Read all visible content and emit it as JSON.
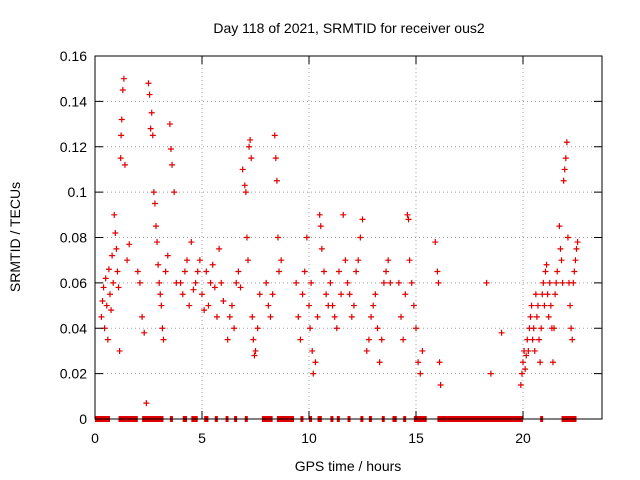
{
  "chart_data": {
    "type": "scatter",
    "title": "Day 118 of 2021, SRMTID for receiver ous2",
    "xlabel": "GPS time / hours",
    "ylabel": "SRMTID / TECUs",
    "xlim": [
      0,
      24
    ],
    "ylim": [
      0,
      0.16
    ],
    "x_ticks": [
      0,
      5,
      10,
      15,
      20
    ],
    "x_tick_labels": [
      "0",
      "5",
      "10",
      "15",
      "20"
    ],
    "y_ticks": [
      0,
      0.02,
      0.04,
      0.06,
      0.08,
      0.1,
      0.12,
      0.14,
      0.16
    ],
    "y_tick_labels": [
      "0",
      "0.02",
      "0.04",
      "0.06",
      "0.08",
      "0.1",
      "0.12",
      "0.14",
      "0.16"
    ],
    "grid": true,
    "marker": "+",
    "color": "#e00000",
    "series": [
      {
        "name": "ous2",
        "points": [
          [
            0.3,
            0.045
          ],
          [
            0.35,
            0.052
          ],
          [
            0.4,
            0.058
          ],
          [
            0.45,
            0.04
          ],
          [
            0.5,
            0.062
          ],
          [
            0.55,
            0.05
          ],
          [
            0.6,
            0.035
          ],
          [
            0.65,
            0.066
          ],
          [
            0.7,
            0.055
          ],
          [
            0.75,
            0.048
          ],
          [
            0.8,
            0.072
          ],
          [
            0.85,
            0.06
          ],
          [
            0.9,
            0.09
          ],
          [
            0.95,
            0.082
          ],
          [
            1.0,
            0.075
          ],
          [
            1.05,
            0.065
          ],
          [
            1.1,
            0.058
          ],
          [
            1.15,
            0.03
          ],
          [
            1.2,
            0.115
          ],
          [
            1.22,
            0.125
          ],
          [
            1.25,
            0.132
          ],
          [
            1.3,
            0.145
          ],
          [
            1.35,
            0.15
          ],
          [
            1.4,
            0.112
          ],
          [
            1.5,
            0.07
          ],
          [
            1.6,
            0.077
          ],
          [
            2.0,
            0.065
          ],
          [
            2.1,
            0.06
          ],
          [
            2.2,
            0.045
          ],
          [
            2.3,
            0.038
          ],
          [
            2.4,
            0.007
          ],
          [
            2.5,
            0.148
          ],
          [
            2.55,
            0.143
          ],
          [
            2.6,
            0.128
          ],
          [
            2.65,
            0.135
          ],
          [
            2.7,
            0.125
          ],
          [
            2.75,
            0.1
          ],
          [
            2.8,
            0.095
          ],
          [
            2.85,
            0.085
          ],
          [
            2.9,
            0.078
          ],
          [
            2.95,
            0.068
          ],
          [
            3.0,
            0.06
          ],
          [
            3.05,
            0.055
          ],
          [
            3.1,
            0.05
          ],
          [
            3.15,
            0.04
          ],
          [
            3.2,
            0.035
          ],
          [
            3.3,
            0.065
          ],
          [
            3.4,
            0.072
          ],
          [
            3.5,
            0.13
          ],
          [
            3.55,
            0.119
          ],
          [
            3.6,
            0.112
          ],
          [
            3.7,
            0.1
          ],
          [
            3.8,
            0.06
          ],
          [
            4.0,
            0.06
          ],
          [
            4.1,
            0.055
          ],
          [
            4.2,
            0.065
          ],
          [
            4.3,
            0.07
          ],
          [
            4.4,
            0.05
          ],
          [
            4.5,
            0.078
          ],
          [
            4.6,
            0.057
          ],
          [
            4.7,
            0.06
          ],
          [
            4.8,
            0.065
          ],
          [
            4.9,
            0.07
          ],
          [
            5.0,
            0.055
          ],
          [
            5.1,
            0.048
          ],
          [
            5.2,
            0.065
          ],
          [
            5.3,
            0.05
          ],
          [
            5.4,
            0.06
          ],
          [
            5.5,
            0.068
          ],
          [
            5.6,
            0.058
          ],
          [
            5.7,
            0.045
          ],
          [
            5.8,
            0.075
          ],
          [
            5.9,
            0.06
          ],
          [
            6.0,
            0.052
          ],
          [
            6.2,
            0.035
          ],
          [
            6.3,
            0.045
          ],
          [
            6.4,
            0.05
          ],
          [
            6.5,
            0.04
          ],
          [
            6.6,
            0.06
          ],
          [
            6.7,
            0.065
          ],
          [
            6.8,
            0.058
          ],
          [
            6.9,
            0.11
          ],
          [
            7.0,
            0.103
          ],
          [
            7.05,
            0.1
          ],
          [
            7.1,
            0.08
          ],
          [
            7.15,
            0.07
          ],
          [
            7.2,
            0.12
          ],
          [
            7.25,
            0.123
          ],
          [
            7.3,
            0.115
          ],
          [
            7.35,
            0.045
          ],
          [
            7.4,
            0.035
          ],
          [
            7.45,
            0.028
          ],
          [
            7.5,
            0.03
          ],
          [
            7.6,
            0.04
          ],
          [
            7.7,
            0.055
          ],
          [
            8.0,
            0.06
          ],
          [
            8.1,
            0.05
          ],
          [
            8.2,
            0.045
          ],
          [
            8.3,
            0.055
          ],
          [
            8.4,
            0.125
          ],
          [
            8.45,
            0.115
          ],
          [
            8.5,
            0.105
          ],
          [
            8.55,
            0.08
          ],
          [
            8.6,
            0.065
          ],
          [
            8.7,
            0.07
          ],
          [
            9.4,
            0.06
          ],
          [
            9.5,
            0.045
          ],
          [
            9.6,
            0.035
          ],
          [
            9.7,
            0.055
          ],
          [
            9.8,
            0.065
          ],
          [
            9.9,
            0.08
          ],
          [
            10.0,
            0.05
          ],
          [
            10.05,
            0.04
          ],
          [
            10.1,
            0.06
          ],
          [
            10.15,
            0.03
          ],
          [
            10.2,
            0.02
          ],
          [
            10.3,
            0.025
          ],
          [
            10.4,
            0.045
          ],
          [
            10.5,
            0.09
          ],
          [
            10.55,
            0.085
          ],
          [
            10.6,
            0.075
          ],
          [
            10.7,
            0.065
          ],
          [
            10.8,
            0.055
          ],
          [
            10.9,
            0.05
          ],
          [
            11.0,
            0.06
          ],
          [
            11.1,
            0.05
          ],
          [
            11.2,
            0.045
          ],
          [
            11.3,
            0.04
          ],
          [
            11.4,
            0.065
          ],
          [
            11.5,
            0.055
          ],
          [
            11.6,
            0.09
          ],
          [
            11.7,
            0.07
          ],
          [
            11.8,
            0.06
          ],
          [
            11.9,
            0.055
          ],
          [
            12.0,
            0.045
          ],
          [
            12.1,
            0.05
          ],
          [
            12.2,
            0.065
          ],
          [
            12.3,
            0.07
          ],
          [
            12.4,
            0.08
          ],
          [
            12.5,
            0.088
          ],
          [
            12.7,
            0.03
          ],
          [
            12.8,
            0.035
          ],
          [
            12.9,
            0.045
          ],
          [
            13.0,
            0.05
          ],
          [
            13.1,
            0.055
          ],
          [
            13.2,
            0.04
          ],
          [
            13.3,
            0.025
          ],
          [
            13.4,
            0.035
          ],
          [
            13.5,
            0.06
          ],
          [
            13.6,
            0.065
          ],
          [
            13.7,
            0.07
          ],
          [
            13.8,
            0.06
          ],
          [
            14.2,
            0.06
          ],
          [
            14.3,
            0.045
          ],
          [
            14.4,
            0.035
          ],
          [
            14.5,
            0.055
          ],
          [
            14.6,
            0.09
          ],
          [
            14.65,
            0.088
          ],
          [
            14.7,
            0.07
          ],
          [
            14.8,
            0.06
          ],
          [
            14.9,
            0.05
          ],
          [
            15.0,
            0.04
          ],
          [
            15.1,
            0.025
          ],
          [
            15.2,
            0.02
          ],
          [
            15.3,
            0.03
          ],
          [
            15.9,
            0.078
          ],
          [
            16.0,
            0.065
          ],
          [
            16.05,
            0.06
          ],
          [
            16.1,
            0.025
          ],
          [
            16.15,
            0.015
          ],
          [
            18.3,
            0.06
          ],
          [
            18.5,
            0.02
          ],
          [
            19.0,
            0.038
          ],
          [
            19.9,
            0.015
          ],
          [
            19.95,
            0.02
          ],
          [
            20.0,
            0.025
          ],
          [
            20.05,
            0.03
          ],
          [
            20.1,
            0.022
          ],
          [
            20.15,
            0.028
          ],
          [
            20.2,
            0.035
          ],
          [
            20.25,
            0.03
          ],
          [
            20.3,
            0.04
          ],
          [
            20.35,
            0.045
          ],
          [
            20.4,
            0.05
          ],
          [
            20.45,
            0.035
          ],
          [
            20.5,
            0.04
          ],
          [
            20.55,
            0.03
          ],
          [
            20.6,
            0.055
          ],
          [
            20.65,
            0.045
          ],
          [
            20.7,
            0.05
          ],
          [
            20.75,
            0.035
          ],
          [
            20.8,
            0.025
          ],
          [
            20.85,
            0.04
          ],
          [
            20.9,
            0.055
          ],
          [
            20.95,
            0.06
          ],
          [
            21.0,
            0.05
          ],
          [
            21.05,
            0.065
          ],
          [
            21.1,
            0.068
          ],
          [
            21.15,
            0.055
          ],
          [
            21.2,
            0.045
          ],
          [
            21.25,
            0.06
          ],
          [
            21.3,
            0.05
          ],
          [
            21.35,
            0.04
          ],
          [
            21.4,
            0.025
          ],
          [
            21.45,
            0.04
          ],
          [
            21.5,
            0.055
          ],
          [
            21.55,
            0.06
          ],
          [
            21.6,
            0.065
          ],
          [
            21.7,
            0.085
          ],
          [
            21.75,
            0.075
          ],
          [
            21.8,
            0.07
          ],
          [
            21.85,
            0.06
          ],
          [
            21.9,
            0.105
          ],
          [
            21.95,
            0.11
          ],
          [
            22.0,
            0.115
          ],
          [
            22.05,
            0.122
          ],
          [
            22.1,
            0.08
          ],
          [
            22.15,
            0.06
          ],
          [
            22.2,
            0.05
          ],
          [
            22.25,
            0.04
          ],
          [
            22.3,
            0.035
          ],
          [
            22.35,
            0.06
          ],
          [
            22.4,
            0.065
          ],
          [
            22.45,
            0.07
          ],
          [
            22.5,
            0.075
          ],
          [
            22.55,
            0.078
          ]
        ],
        "zero_value_intervals_hours": [
          [
            0.0,
            0.7
          ],
          [
            1.1,
            2.0
          ],
          [
            2.2,
            3.2
          ],
          [
            3.5,
            3.6
          ],
          [
            4.1,
            4.3
          ],
          [
            4.5,
            4.8
          ],
          [
            5.1,
            5.3
          ],
          [
            5.6,
            5.7
          ],
          [
            6.1,
            6.2
          ],
          [
            6.5,
            6.6
          ],
          [
            7.0,
            7.1
          ],
          [
            7.8,
            8.3
          ],
          [
            8.5,
            9.3
          ],
          [
            9.6,
            9.7
          ],
          [
            10.0,
            10.1
          ],
          [
            10.4,
            10.6
          ],
          [
            11.0,
            11.1
          ],
          [
            11.3,
            11.4
          ],
          [
            11.8,
            11.9
          ],
          [
            12.4,
            12.5
          ],
          [
            12.8,
            12.9
          ],
          [
            13.4,
            13.5
          ],
          [
            13.9,
            14.1
          ],
          [
            14.4,
            14.5
          ],
          [
            14.9,
            15.5
          ],
          [
            16.0,
            20.0
          ],
          [
            20.8,
            20.9
          ],
          [
            21.8,
            22.5
          ]
        ]
      }
    ]
  }
}
